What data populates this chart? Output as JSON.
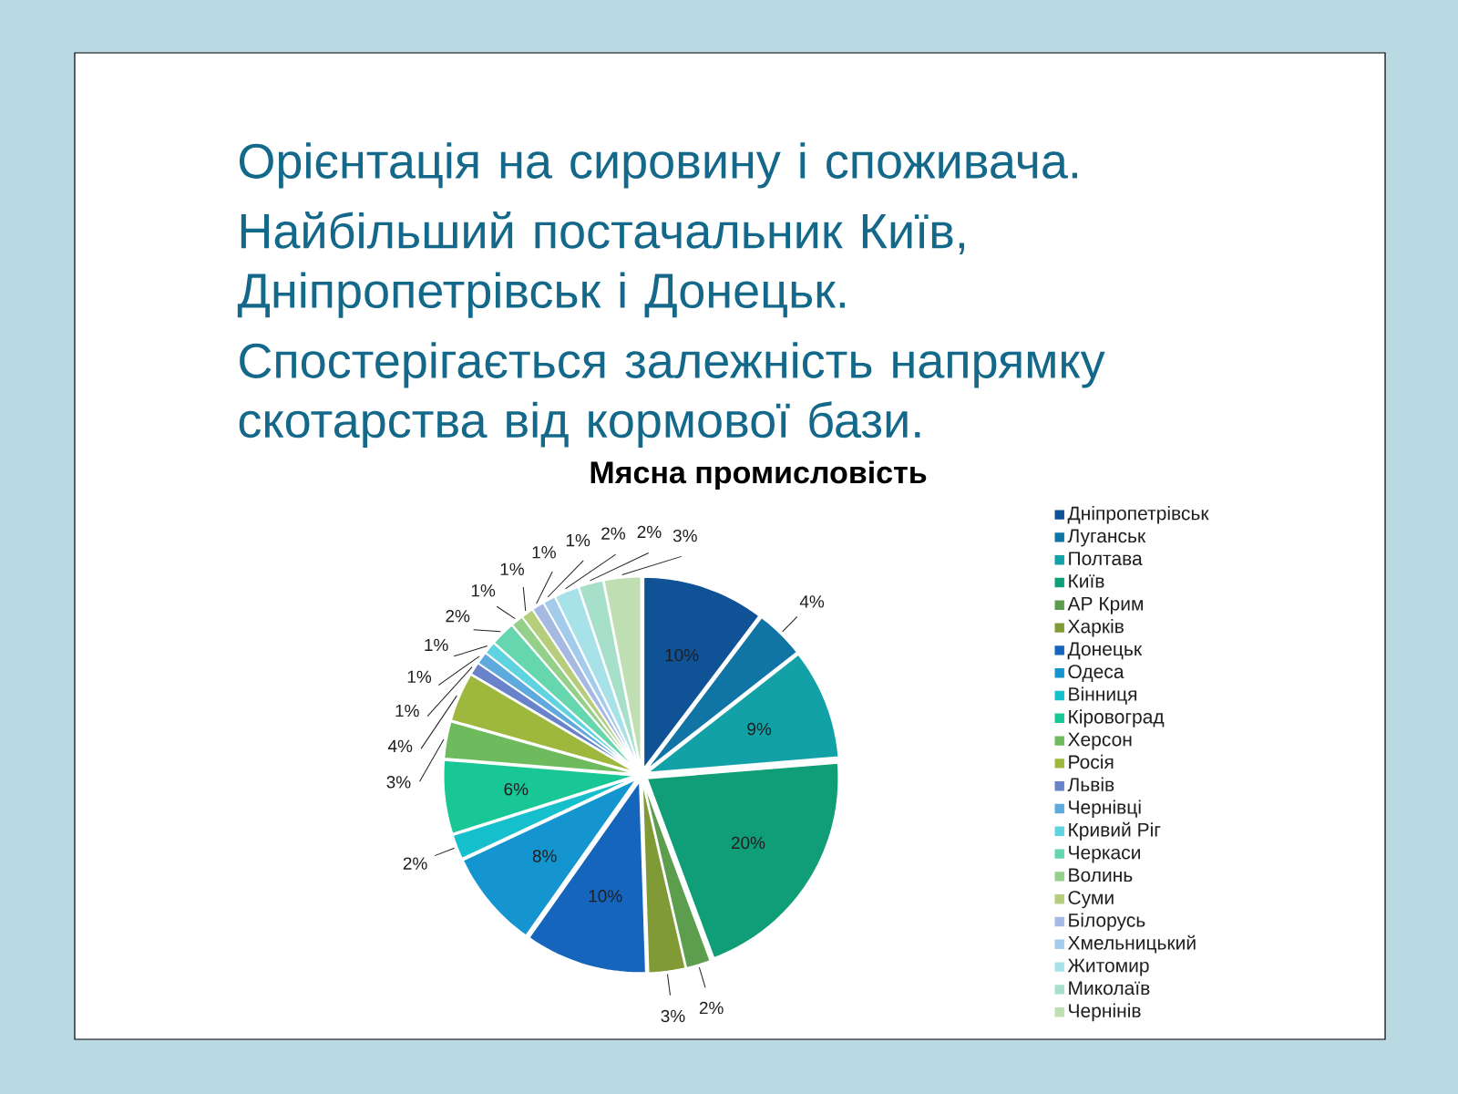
{
  "chart_data": {
    "type": "pie",
    "title": "Мясна промисловість",
    "annotations": [
      "Орієнтація на сировину і споживача.",
      "Найбільший постачальник Київ, Дніпропетрівськ і Донецьк.",
      "Спостерігається залежність напрямку скотарства від кормової бази."
    ],
    "categories": [
      "Дніпропетрівськ",
      "Луганськ",
      "Полтава",
      "Київ",
      "АР Крим",
      "Харків",
      "Донецьк",
      "Одеса",
      "Вінниця",
      "Кіровоград",
      "Херсон",
      "Росія",
      "Львів",
      "Чернівці",
      "Кривий Ріг",
      "Черкаси",
      "Волинь",
      "Суми",
      "Білорусь",
      "Хмельницький",
      "Житомир",
      "Миколаїв",
      "Чернінів"
    ],
    "values": [
      10,
      4,
      9,
      20,
      2,
      3,
      10,
      8,
      2,
      6,
      3,
      4,
      1,
      1,
      1,
      2,
      1,
      1,
      1,
      1,
      2,
      2,
      3
    ],
    "value_labels": [
      "10%",
      "4%",
      "9%",
      "20%",
      "2%",
      "3%",
      "10%",
      "8%",
      "2%",
      "6%",
      "3%",
      "4%",
      "1%",
      "1%",
      "1%",
      "2%",
      "1%",
      "1%",
      "1%",
      "1%",
      "2%",
      "2%",
      "3%"
    ],
    "colors": [
      "#105296",
      "#1074a5",
      "#12a1a6",
      "#109e78",
      "#5d9e4e",
      "#809b35",
      "#1565bd",
      "#1495cf",
      "#15bfcb",
      "#19c796",
      "#6dbb5d",
      "#9eb83d",
      "#6883c9",
      "#5ea9dd",
      "#5fd3df",
      "#65d6ae",
      "#94d08a",
      "#b6cd7c",
      "#a6b9e2",
      "#a3cbec",
      "#a8e2e9",
      "#a6dfca",
      "#bfdfb3"
    ],
    "legend": "right"
  }
}
